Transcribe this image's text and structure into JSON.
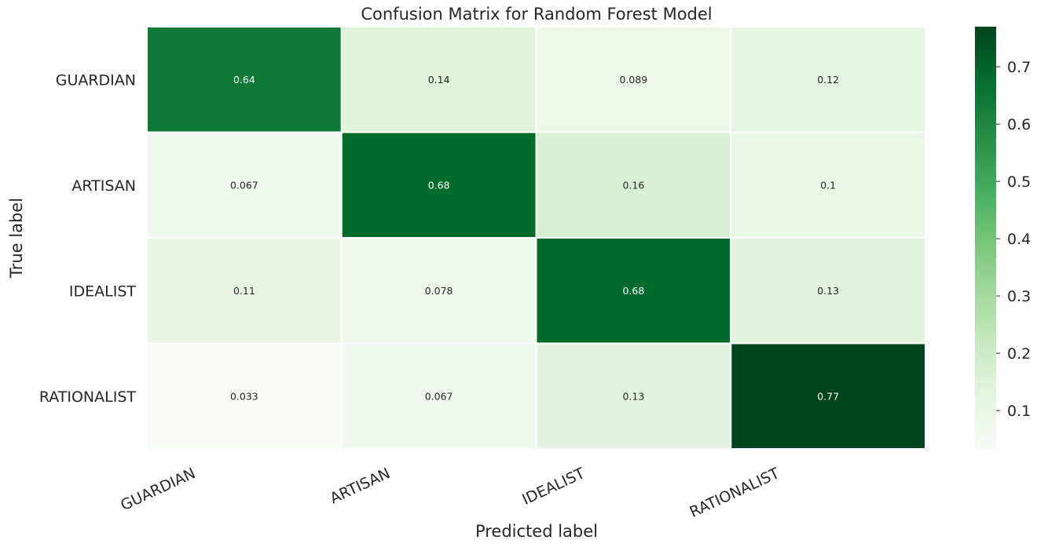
{
  "chart_data": {
    "type": "heatmap",
    "title": "Confusion Matrix for Random Forest Model",
    "xlabel": "Predicted label",
    "ylabel": "True label",
    "x_categories": [
      "GUARDIAN",
      "ARTISAN",
      "IDEALIST",
      "RATIONALIST"
    ],
    "y_categories": [
      "GUARDIAN",
      "ARTISAN",
      "IDEALIST",
      "RATIONALIST"
    ],
    "values": [
      [
        0.64,
        0.14,
        0.089,
        0.12
      ],
      [
        0.067,
        0.68,
        0.16,
        0.1
      ],
      [
        0.11,
        0.078,
        0.68,
        0.13
      ],
      [
        0.033,
        0.067,
        0.13,
        0.77
      ]
    ],
    "value_labels": [
      [
        "0.64",
        "0.14",
        "0.089",
        "0.12"
      ],
      [
        "0.067",
        "0.68",
        "0.16",
        "0.1"
      ],
      [
        "0.11",
        "0.078",
        "0.68",
        "0.13"
      ],
      [
        "0.033",
        "0.067",
        "0.13",
        "0.77"
      ]
    ],
    "colormap": "Greens",
    "colorbar": {
      "vmin": 0.033,
      "vmax": 0.77,
      "ticks": [
        0.1,
        0.2,
        0.3,
        0.4,
        0.5,
        0.6,
        0.7
      ],
      "tick_labels": [
        "0.1",
        "0.2",
        "0.3",
        "0.4",
        "0.5",
        "0.6",
        "0.7"
      ],
      "placement": "right"
    },
    "x_tick_rotation_deg": -25,
    "grid": false
  }
}
